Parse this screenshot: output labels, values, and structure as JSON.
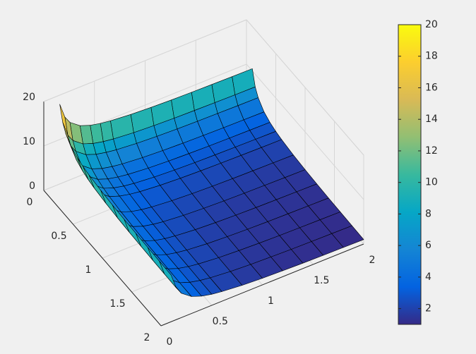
{
  "chart_data": {
    "type": "surface",
    "x": [
      0.1,
      0.15,
      0.2,
      0.3,
      0.4,
      0.5,
      0.6,
      0.8,
      1,
      1.2,
      1.4,
      1.6,
      1.8,
      2
    ],
    "y": [
      0.1,
      0.15,
      0.2,
      0.3,
      0.4,
      0.5,
      0.6,
      0.8,
      1,
      1.2,
      1.4,
      1.6,
      1.8,
      2
    ],
    "z": [
      [
        20,
        16.67,
        15,
        13.33,
        12.5,
        12,
        11.67,
        11.25,
        11,
        10.83,
        10.71,
        10.63,
        10.56,
        10.5
      ],
      [
        16.67,
        13.34,
        11.67,
        10,
        9.17,
        8.67,
        8.34,
        7.92,
        7.67,
        7.5,
        7.38,
        7.3,
        7.23,
        7.17
      ],
      [
        15,
        11.67,
        10,
        8.33,
        7.5,
        7,
        6.67,
        6.25,
        6,
        5.83,
        5.71,
        5.63,
        5.56,
        5.5
      ],
      [
        13.33,
        10,
        8.33,
        6.66,
        5.83,
        5.33,
        5,
        4.58,
        4.33,
        4.16,
        4.04,
        3.96,
        3.89,
        3.83
      ],
      [
        12.5,
        9.17,
        7.5,
        5.83,
        5,
        4.5,
        4.17,
        3.75,
        3.5,
        3.33,
        3.21,
        3.13,
        3.06,
        3
      ],
      [
        12,
        8.67,
        7,
        5.33,
        4.5,
        4,
        3.67,
        3.25,
        3,
        2.83,
        2.71,
        2.63,
        2.56,
        2.5
      ],
      [
        11.67,
        8.34,
        6.67,
        5,
        4.17,
        3.67,
        3.34,
        2.92,
        2.67,
        2.5,
        2.38,
        2.3,
        2.23,
        2.17
      ],
      [
        11.25,
        7.92,
        6.25,
        4.58,
        3.75,
        3.25,
        2.92,
        2.5,
        2.25,
        2.08,
        1.96,
        1.88,
        1.81,
        1.75
      ],
      [
        11,
        7.67,
        6,
        4.33,
        3.5,
        3,
        2.67,
        2.25,
        2,
        1.83,
        1.71,
        1.63,
        1.56,
        1.5
      ],
      [
        10.83,
        7.5,
        5.83,
        4.16,
        3.33,
        2.83,
        2.5,
        2.08,
        1.83,
        1.66,
        1.54,
        1.46,
        1.39,
        1.33
      ],
      [
        10.71,
        7.38,
        5.71,
        4.04,
        3.21,
        2.71,
        2.38,
        1.96,
        1.71,
        1.54,
        1.42,
        1.34,
        1.27,
        1.21
      ],
      [
        10.63,
        7.3,
        5.63,
        3.96,
        3.13,
        2.63,
        2.3,
        1.88,
        1.63,
        1.46,
        1.34,
        1.26,
        1.19,
        1.13
      ],
      [
        10.56,
        7.23,
        5.56,
        3.89,
        3.06,
        2.56,
        2.23,
        1.81,
        1.56,
        1.39,
        1.27,
        1.19,
        1.12,
        1.06
      ],
      [
        10.5,
        7.17,
        5.5,
        3.83,
        3,
        2.5,
        2.17,
        1.75,
        1.5,
        1.33,
        1.21,
        1.13,
        1.06,
        1
      ]
    ],
    "xlim": [
      0,
      2
    ],
    "xticks": [
      0,
      0.5,
      1,
      1.5,
      2
    ],
    "ylim": [
      0,
      2
    ],
    "yticks": [
      0,
      0.5,
      1,
      1.5,
      2
    ],
    "zlim": [
      0,
      20
    ],
    "zticks": [
      0,
      10,
      20
    ],
    "clim": [
      1,
      20
    ],
    "cticks": [
      2,
      4,
      6,
      8,
      10,
      12,
      14,
      16,
      18,
      20
    ],
    "colormap": [
      "#352a87",
      "#0363e1",
      "#1485d4",
      "#06a7c6",
      "#38b99e",
      "#92bf73",
      "#d9ba56",
      "#fcce2e",
      "#f9fb0e"
    ],
    "grid": true,
    "colorbar": true
  }
}
